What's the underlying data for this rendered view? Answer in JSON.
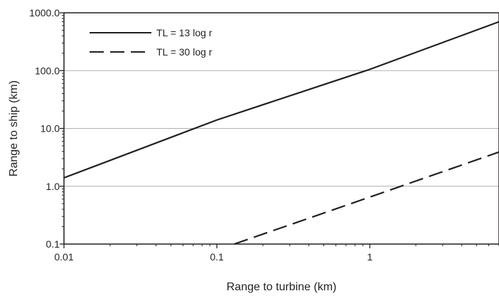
{
  "chart_data": {
    "type": "line",
    "xlabel": "Range to turbine (km)",
    "ylabel": "Range to ship (km)",
    "x_scale": "log",
    "y_scale": "log",
    "xlim": [
      0.01,
      7
    ],
    "ylim": [
      0.1,
      1000
    ],
    "x_ticks": [
      0.01,
      0.1,
      1
    ],
    "x_tick_labels": [
      "0.01",
      "0.1",
      "1"
    ],
    "y_ticks": [
      0.1,
      1,
      10,
      100,
      1000
    ],
    "y_tick_labels": [
      "0.1",
      "1.0",
      "10.0",
      "100.0",
      "1000.0"
    ],
    "grid": "horizontal at major y ticks",
    "legend_position": "top-left",
    "series": [
      {
        "name": "TL = 13 log r",
        "style": "solid",
        "color": "#231f20",
        "x": [
          0.01,
          0.1,
          1,
          7
        ],
        "y": [
          1.4,
          14,
          105,
          700
        ]
      },
      {
        "name": "TL = 30 log r",
        "style": "dashed",
        "color": "#231f20",
        "x": [
          0.13,
          1,
          7
        ],
        "y": [
          0.1,
          0.65,
          3.9
        ]
      }
    ]
  }
}
